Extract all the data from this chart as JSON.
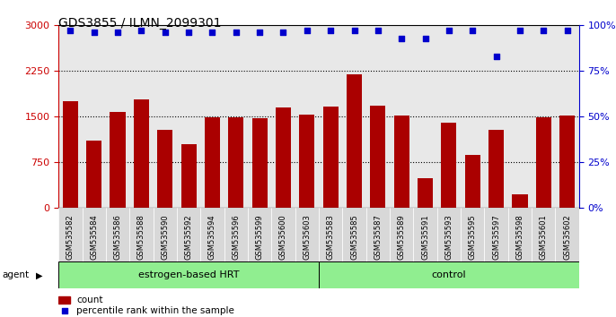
{
  "title": "GDS3855 / ILMN_2099301",
  "samples": [
    "GSM535582",
    "GSM535584",
    "GSM535586",
    "GSM535588",
    "GSM535590",
    "GSM535592",
    "GSM535594",
    "GSM535596",
    "GSM535599",
    "GSM535600",
    "GSM535603",
    "GSM535583",
    "GSM535585",
    "GSM535587",
    "GSM535589",
    "GSM535591",
    "GSM535593",
    "GSM535595",
    "GSM535597",
    "GSM535598",
    "GSM535601",
    "GSM535602"
  ],
  "counts": [
    1750,
    1100,
    1580,
    1780,
    1280,
    1050,
    1480,
    1480,
    1470,
    1650,
    1530,
    1670,
    2200,
    1680,
    1520,
    480,
    1400,
    870,
    1280,
    220,
    1490,
    1510
  ],
  "percentiles": [
    97,
    96,
    96,
    97,
    96,
    96,
    96,
    96,
    96,
    96,
    97,
    97,
    97,
    97,
    93,
    93,
    97,
    97,
    83,
    97,
    97,
    97
  ],
  "group_labels": [
    "estrogen-based HRT",
    "control"
  ],
  "group_sizes": [
    11,
    11
  ],
  "bar_color": "#AA0000",
  "dot_color": "#0000CC",
  "ylim_left": [
    0,
    3000
  ],
  "ylim_right": [
    0,
    100
  ],
  "yticks_left": [
    0,
    750,
    1500,
    2250,
    3000
  ],
  "yticks_right": [
    0,
    25,
    50,
    75,
    100
  ],
  "grid_values": [
    750,
    1500,
    2250
  ],
  "plot_bg": "#e8e8e8",
  "legend_count_color": "#AA0000",
  "legend_dot_color": "#0000CC",
  "left_axis_color": "#CC0000",
  "right_axis_color": "#0000CC"
}
